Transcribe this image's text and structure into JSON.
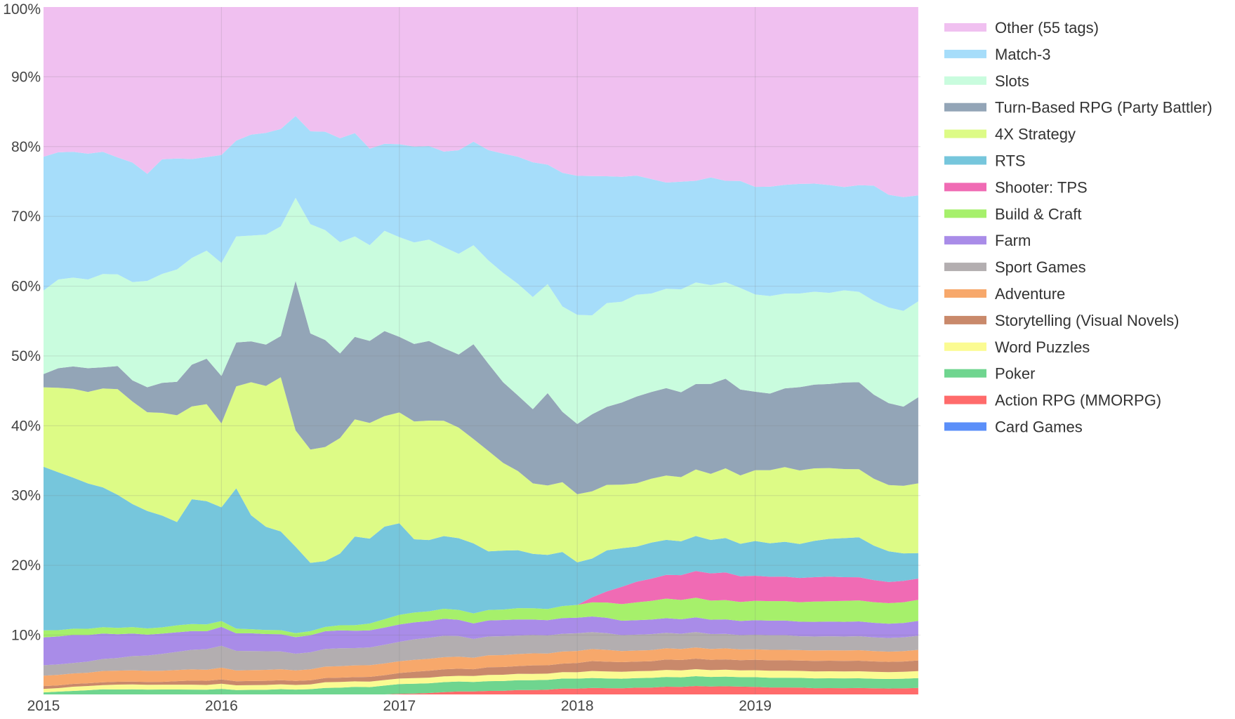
{
  "chart_data": {
    "type": "area",
    "stacking": "percent",
    "x_start": "2015-01",
    "x_end": "2019-12",
    "x_interval": "month",
    "x_ticks": [
      "2015",
      "2016",
      "2017",
      "2018",
      "2019"
    ],
    "y_ticks": [
      "10%",
      "20%",
      "30%",
      "40%",
      "50%",
      "60%",
      "70%",
      "80%",
      "90%",
      "100%"
    ],
    "ylim": [
      1.5,
      100
    ],
    "grid": true,
    "legend_position": "right",
    "series": [
      {
        "name": "Card Games",
        "color": "#5b8ff9",
        "values": [
          0.1,
          0.1,
          0.1,
          0.1,
          0.1,
          0.1,
          0.1,
          0.1,
          0.1,
          0.1,
          0.1,
          0.1,
          0.1,
          0.1,
          0.1,
          0.1,
          0.1,
          0.1,
          0.1,
          0.1,
          0.1,
          0.1,
          0.1,
          0.1,
          0.1,
          0.1,
          0.1,
          0.1,
          0.1,
          0.1,
          0.1,
          0.1,
          0.1,
          0.1,
          0.1,
          0.1,
          0.1,
          0.1,
          0.1,
          0.1,
          0.1,
          0.1,
          0.1,
          0.1,
          0.1,
          0.1,
          0.1,
          0.1,
          0.1,
          0.1,
          0.1,
          0.1,
          0.1,
          0.1,
          0.1,
          0.1,
          0.1,
          0.1,
          0.1,
          0.1
        ]
      },
      {
        "name": "Action RPG (MMORPG)",
        "color": "#ff6b6b",
        "values": [
          0.5,
          0.6,
          0.6,
          0.7,
          0.8,
          0.8,
          0.8,
          0.8,
          0.8,
          0.8,
          0.8,
          0.8,
          0.8,
          0.8,
          0.8,
          0.8,
          0.9,
          0.9,
          0.9,
          1.0,
          1.0,
          1.2,
          1.2,
          1.3,
          1.5,
          1.5,
          1.6,
          1.7,
          1.8,
          1.9,
          1.9,
          1.9,
          2.0,
          2.0,
          2.1,
          2.2,
          2.2,
          2.3,
          2.3,
          2.3,
          2.4,
          2.4,
          2.5,
          2.5,
          2.6,
          2.6,
          2.6,
          2.6,
          2.5,
          2.4,
          2.4,
          2.4,
          2.3,
          2.3,
          2.3,
          2.3,
          2.3,
          2.3,
          2.3,
          2.3
        ]
      },
      {
        "name": "Poker",
        "color": "#6fd58f",
        "values": [
          1.2,
          1.2,
          1.3,
          1.3,
          1.3,
          1.3,
          1.3,
          1.3,
          1.3,
          1.3,
          1.3,
          1.3,
          1.3,
          1.3,
          1.3,
          1.3,
          1.3,
          1.3,
          1.3,
          1.3,
          1.3,
          1.3,
          1.3,
          1.4,
          1.4,
          1.4,
          1.4,
          1.4,
          1.4,
          1.4,
          1.4,
          1.4,
          1.4,
          1.4,
          1.4,
          1.4,
          1.4,
          1.4,
          1.4,
          1.4,
          1.4,
          1.4,
          1.4,
          1.4,
          1.4,
          1.4,
          1.4,
          1.4,
          1.4,
          1.4,
          1.4,
          1.4,
          1.4,
          1.4,
          1.4,
          1.4,
          1.4,
          1.4,
          1.4,
          1.4
        ]
      },
      {
        "name": "Word Puzzles",
        "color": "#fbfb92",
        "values": [
          0.5,
          0.5,
          0.6,
          0.6,
          0.6,
          0.7,
          0.7,
          0.7,
          0.7,
          0.7,
          0.7,
          0.7,
          0.7,
          0.7,
          0.7,
          0.7,
          0.7,
          0.7,
          0.7,
          0.8,
          0.8,
          0.8,
          0.8,
          0.8,
          0.8,
          0.8,
          0.8,
          0.8,
          0.8,
          0.9,
          0.9,
          0.9,
          0.9,
          0.9,
          0.9,
          0.9,
          0.9,
          1.0,
          1.0,
          1.0,
          1.0,
          1.0,
          1.0,
          1.0,
          1.0,
          1.0,
          1.0,
          1.0,
          1.0,
          1.0,
          1.0,
          1.0,
          1.0,
          1.0,
          1.0,
          1.0,
          1.0,
          1.0,
          1.0,
          1.0
        ]
      },
      {
        "name": "Storytelling (Visual Novels)",
        "color": "#c9896b",
        "values": [
          0.4,
          0.4,
          0.4,
          0.4,
          0.4,
          0.4,
          0.4,
          0.4,
          0.4,
          0.5,
          0.6,
          0.6,
          0.6,
          0.6,
          0.6,
          0.6,
          0.6,
          0.6,
          0.6,
          0.6,
          0.6,
          0.6,
          0.7,
          0.7,
          0.8,
          0.9,
          1.0,
          1.0,
          1.0,
          1.0,
          1.1,
          1.1,
          1.1,
          1.2,
          1.2,
          1.2,
          1.3,
          1.4,
          1.4,
          1.4,
          1.4,
          1.4,
          1.5,
          1.5,
          1.5,
          1.5,
          1.5,
          1.5,
          1.5,
          1.5,
          1.5,
          1.5,
          1.5,
          1.5,
          1.5,
          1.5,
          1.5,
          1.5,
          1.5,
          1.5
        ]
      },
      {
        "name": "Adventure",
        "color": "#f7a86b",
        "values": [
          1.5,
          1.5,
          1.5,
          1.5,
          1.6,
          1.6,
          1.6,
          1.6,
          1.6,
          1.6,
          1.6,
          1.6,
          1.6,
          1.6,
          1.6,
          1.6,
          1.6,
          1.6,
          1.6,
          1.6,
          1.6,
          1.7,
          1.7,
          1.7,
          1.7,
          1.7,
          1.7,
          1.7,
          1.7,
          1.7,
          1.7,
          1.7,
          1.7,
          1.7,
          1.7,
          1.7,
          1.7,
          1.7,
          1.7,
          1.6,
          1.6,
          1.6,
          1.6,
          1.6,
          1.6,
          1.6,
          1.6,
          1.6,
          1.5,
          1.5,
          1.5,
          1.5,
          1.5,
          1.5,
          1.5,
          1.5,
          1.5,
          1.5,
          1.5,
          1.5
        ]
      },
      {
        "name": "Sport Games",
        "color": "#b3aeb0",
        "values": [
          1.5,
          1.5,
          1.5,
          1.6,
          1.7,
          1.8,
          2.0,
          2.2,
          2.4,
          2.6,
          2.8,
          3.0,
          3.0,
          2.9,
          2.8,
          2.7,
          2.6,
          2.5,
          2.5,
          2.5,
          2.5,
          2.5,
          2.6,
          2.7,
          2.8,
          2.9,
          3.0,
          3.0,
          2.9,
          2.8,
          2.7,
          2.7,
          2.6,
          2.6,
          2.6,
          2.5,
          2.5,
          2.4,
          2.4,
          2.3,
          2.3,
          2.3,
          2.2,
          2.2,
          2.2,
          2.2,
          2.1,
          2.1,
          2.1,
          2.1,
          2.1,
          2.0,
          2.0,
          2.0,
          2.0,
          2.0,
          2.0,
          2.0,
          2.0,
          2.0
        ]
      },
      {
        "name": "Farm",
        "color": "#a98ce8",
        "values": [
          4.0,
          4.0,
          4.0,
          3.8,
          3.6,
          3.4,
          3.2,
          3.0,
          2.9,
          2.8,
          2.7,
          2.6,
          2.6,
          2.6,
          2.6,
          2.5,
          2.5,
          2.5,
          2.5,
          2.5,
          2.5,
          2.5,
          2.5,
          2.5,
          2.5,
          2.4,
          2.4,
          2.4,
          2.3,
          2.3,
          2.3,
          2.3,
          2.3,
          2.2,
          2.2,
          2.2,
          2.2,
          2.2,
          2.2,
          2.1,
          2.1,
          2.1,
          2.1,
          2.1,
          2.1,
          2.1,
          2.1,
          2.1,
          2.1,
          2.1,
          2.1,
          2.1,
          2.1,
          2.1,
          2.1,
          2.1,
          2.1,
          2.1,
          2.1,
          2.1
        ]
      },
      {
        "name": "Build & Craft",
        "color": "#a6f06b",
        "values": [
          1.0,
          0.9,
          0.9,
          0.9,
          0.9,
          0.9,
          0.9,
          0.9,
          0.9,
          1.0,
          1.0,
          1.0,
          0.8,
          0.7,
          0.6,
          0.6,
          0.6,
          0.6,
          0.6,
          0.6,
          0.7,
          0.8,
          1.0,
          1.2,
          1.4,
          1.4,
          1.4,
          1.4,
          1.4,
          1.5,
          1.5,
          1.5,
          1.6,
          1.6,
          1.6,
          1.7,
          1.8,
          2.0,
          2.2,
          2.4,
          2.6,
          2.7,
          2.8,
          2.8,
          2.8,
          2.8,
          2.8,
          2.8,
          2.8,
          2.8,
          2.8,
          2.8,
          2.9,
          2.9,
          3.0,
          3.0,
          3.0,
          3.0,
          3.0,
          3.0
        ]
      },
      {
        "name": "Shooter: TPS",
        "color": "#f06bb4",
        "values": [
          0,
          0,
          0,
          0,
          0,
          0,
          0,
          0,
          0,
          0,
          0,
          0,
          0,
          0,
          0,
          0,
          0,
          0,
          0,
          0,
          0,
          0,
          0,
          0,
          0,
          0,
          0,
          0,
          0,
          0,
          0,
          0,
          0,
          0,
          0,
          0,
          0,
          0.7,
          1.6,
          2.5,
          3.0,
          3.2,
          3.4,
          3.6,
          3.8,
          4.0,
          4.0,
          3.8,
          3.6,
          3.5,
          3.5,
          3.5,
          3.5,
          3.5,
          3.4,
          3.3,
          3.2,
          3.1,
          3.1,
          3.0
        ]
      },
      {
        "name": "RTS",
        "color": "#76c6dc",
        "values": [
          23.5,
          22.6,
          21.6,
          20.8,
          19.8,
          19.0,
          17.4,
          16.9,
          16.0,
          14.8,
          17.9,
          17.9,
          15.6,
          20.8,
          16.7,
          15.0,
          14.4,
          13.0,
          10.0,
          9.3,
          10.0,
          12.8,
          12.4,
          13.4,
          13.2,
          10.4,
          10.2,
          10.2,
          10.1,
          10.4,
          8.4,
          8.4,
          8.2,
          7.7,
          7.8,
          7.6,
          6.0,
          5.5,
          5.9,
          5.6,
          5.1,
          5.2,
          5.0,
          4.9,
          5.0,
          4.9,
          5.0,
          4.8,
          5.0,
          4.8,
          5.0,
          4.9,
          5.2,
          5.4,
          5.6,
          5.7,
          5.0,
          4.5,
          4.0,
          3.6
        ]
      },
      {
        "name": "4X Strategy",
        "color": "#ddfb86",
        "values": [
          11.4,
          12.1,
          12.7,
          13.1,
          14.0,
          15.1,
          14.5,
          14.2,
          14.7,
          15.3,
          13.3,
          14.1,
          11.5,
          15.1,
          19.5,
          20.5,
          22.5,
          17.5,
          16.6,
          16.1,
          16.1,
          16.9,
          16.9,
          16.0,
          16.0,
          16.7,
          17.1,
          16.2,
          15.6,
          15.5,
          14.4,
          12.5,
          11.2,
          10.0,
          10.0,
          9.8,
          9.6,
          9.5,
          9.4,
          9.2,
          9.2,
          9.2,
          9.2,
          9.3,
          9.5,
          9.7,
          10.1,
          10.1,
          10.2,
          10.5,
          10.7,
          10.6,
          10.4,
          10.1,
          9.9,
          9.7,
          9.7,
          9.7,
          9.8,
          9.9
        ]
      },
      {
        "name": "Turn-Based RPG (Party Battler)",
        "color": "#93a5b7",
        "values": [
          1.9,
          2.8,
          3.2,
          3.4,
          3.0,
          3.3,
          3.0,
          3.6,
          4.3,
          4.8,
          6.0,
          6.6,
          6.5,
          6.5,
          6.0,
          6.0,
          6.0,
          22.5,
          17.0,
          15.1,
          11.8,
          11.9,
          12.0,
          12.3,
          10.9,
          11.0,
          11.4,
          10.2,
          10.3,
          14.1,
          12.5,
          11.5,
          10.7,
          10.5,
          13.3,
          9.9,
          9.9,
          10.9,
          11.2,
          11.9,
          12.6,
          12.5,
          12.5,
          12.3,
          12.2,
          13.2,
          13.0,
          12.7,
          11.3,
          11.0,
          11.3,
          12.0,
          12.0,
          12.0,
          12.4,
          12.4,
          12.2,
          12.0,
          11.5,
          12.2
        ]
      },
      {
        "name": "Slots",
        "color": "#c9fcde",
        "values": [
          12.0,
          12.7,
          12.7,
          12.7,
          13.2,
          13.1,
          13.9,
          15.3,
          15.6,
          16.1,
          15.3,
          15.7,
          15.5,
          15.7,
          15.5,
          16.0,
          16.0,
          12.5,
          16.0,
          15.5,
          15.5,
          14.5,
          14.0,
          14.5,
          14.4,
          14.4,
          14.5,
          14.2,
          14.2,
          14.7,
          14.8,
          15.6,
          15.8,
          15.9,
          15.7,
          14.8,
          15.4,
          14.0,
          14.9,
          14.6,
          14.8,
          14.2,
          14.2,
          14.9,
          14.5,
          14.5,
          14.0,
          15.0,
          14.0,
          14.0,
          13.6,
          13.5,
          13.3,
          13.0,
          13.2,
          12.9,
          13.6,
          14.0,
          13.9,
          13.6
        ]
      },
      {
        "name": "Match-3",
        "color": "#a6ddfa",
        "values": [
          19.2,
          18.2,
          18.0,
          18.0,
          17.3,
          16.7,
          16.9,
          15.4,
          16.4,
          15.9,
          14.2,
          13.6,
          14.8,
          14.2,
          14.8,
          14.8,
          14.2,
          12.3,
          13.6,
          13.9,
          14.5,
          14.9,
          14.1,
          12.6,
          13.4,
          13.6,
          13.4,
          13.4,
          14.6,
          15.4,
          15.8,
          17.0,
          18.0,
          19.1,
          17.2,
          18.8,
          19.6,
          19.7,
          18.2,
          18.1,
          17.3,
          16.5,
          15.2,
          15.6,
          14.5,
          15.8,
          14.7,
          15.8,
          15.5,
          15.7,
          15.6,
          15.8,
          15.5,
          15.4,
          14.8,
          15.2,
          16.7,
          16.5,
          16.5,
          15.0
        ]
      },
      {
        "name": "Other (55 tags)",
        "color": "#f0c0f0",
        "values": [
          21.5,
          20.8,
          20.7,
          21.0,
          20.5,
          21.5,
          22.0,
          24.0,
          21.8,
          21.7,
          21.8,
          21.8,
          20.3,
          19.8,
          18.7,
          18.3,
          17.8,
          16.4,
          18.2,
          17.6,
          18.3,
          18.2,
          20.7,
          19.8,
          19.8,
          19.8,
          19.9,
          20.3,
          20.2,
          20.0,
          20.5,
          20.9,
          21.2,
          22.0,
          22.7,
          23.3,
          23.8,
          23.9,
          24.3,
          24.6,
          24.5,
          24.8,
          25.1,
          25.3,
          24.8,
          25.0,
          25.2,
          25.7,
          25.9,
          25.8,
          25.5,
          25.5,
          25.3,
          25.4,
          25.8,
          25.4,
          25.9,
          27.5,
          27.6,
          26.7
        ]
      }
    ]
  }
}
